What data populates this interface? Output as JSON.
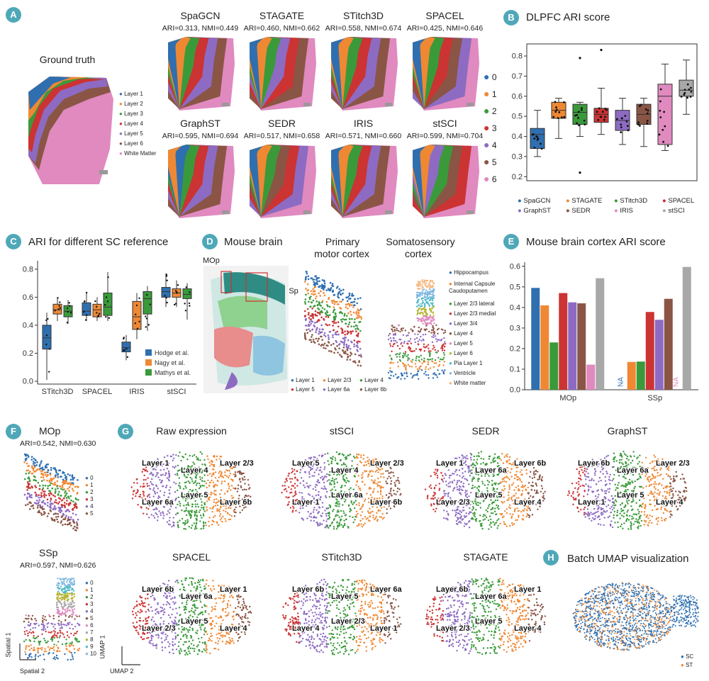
{
  "colors": {
    "teal": "#4fa8b8",
    "spagcn": "#2f6fb0",
    "stagate": "#ef8833",
    "stitch3d": "#3a9a3a",
    "spacel": "#cc3333",
    "graphst": "#8d6bc2",
    "sedr": "#8a5545",
    "iris": "#e08ac0",
    "stsci": "#a8a8a8",
    "hodge": "#2f6fb0",
    "nagy": "#ef8833",
    "mathys": "#3a9a3a"
  },
  "panels": {
    "A": {
      "letter": "A",
      "gt_title": "Ground truth",
      "gt_legend": [
        "Layer 1",
        "Layer 2",
        "Layer 3",
        "Layer 4",
        "Layer 5",
        "Layer 6",
        "White Matter"
      ],
      "methods": [
        {
          "name": "SpaGCN",
          "sub": "ARI=0.313, NMI=0.449"
        },
        {
          "name": "STAGATE",
          "sub": "ARI=0.460, NMI=0.662"
        },
        {
          "name": "STitch3D",
          "sub": "ARI=0.558, NMI=0.674"
        },
        {
          "name": "SPACEL",
          "sub": "ARI=0.425, NMI=0.646"
        },
        {
          "name": "GraphST",
          "sub": "ARI=0.595, NMI=0.694"
        },
        {
          "name": "SEDR",
          "sub": "ARI=0.517, NMI=0.658"
        },
        {
          "name": "IRIS",
          "sub": "ARI=0.571, NMI=0.660"
        },
        {
          "name": "stSCI",
          "sub": "ARI=0.599, NMI=0.704"
        }
      ],
      "cluster_legend": [
        "0",
        "1",
        "2",
        "3",
        "4",
        "5",
        "6"
      ]
    },
    "B": {
      "letter": "B",
      "title": "DLPFC ARI score"
    },
    "C": {
      "letter": "C",
      "title": "ARI for different SC reference"
    },
    "D": {
      "letter": "D",
      "t1": "Mouse brain",
      "t2a": "Primary",
      "t2b": "motor cortex",
      "t3a": "Somatosensory",
      "t3b": "cortex",
      "mop": "MOp",
      "ssp": "SSp",
      "layer_legend": [
        "Layer 1",
        "Layer 2/3",
        "Layer 4",
        "Layer 5",
        "Layer 6a",
        "Layer 6b"
      ],
      "region_legend": [
        "Hippocampus",
        "Internal Capsule Caudoputamen",
        "Layer 2/3 lateral",
        "Layer 2/3 medial",
        "Layer 3/4",
        "Layer 4",
        "Layer 5",
        "Layer 6",
        "Pia Layer 1",
        "Ventricle",
        "White matter"
      ]
    },
    "E": {
      "letter": "E",
      "title": "Mouse brain cortex ARI score",
      "na": "NA"
    },
    "F": {
      "letter": "F",
      "t1": "MOp",
      "s1": "ARI=0.542, NMI=0.630",
      "t2": "SSp",
      "s2": "ARI=0.597, NMI=0.626",
      "leg1": [
        "0",
        "1",
        "2",
        "3",
        "4",
        "5"
      ],
      "leg2": [
        "0",
        "1",
        "2",
        "3",
        "4",
        "5",
        "6",
        "7",
        "8",
        "9",
        "10"
      ],
      "ax_y": "Spatial 1",
      "ax_x": "Spatial 2"
    },
    "G": {
      "letter": "G",
      "umaps": [
        {
          "title": "Raw expression",
          "labels": [
            "Layer 1",
            "Layer 4",
            "Layer 2/3",
            "Layer 6a",
            "Layer 5",
            "Layer 6b"
          ]
        },
        {
          "title": "stSCI",
          "labels": [
            "Layer 5",
            "Layer 4",
            "Layer 2/3",
            "Layer 1",
            "Layer 6a",
            "Layer 6b"
          ]
        },
        {
          "title": "SEDR",
          "labels": [
            "Layer 1",
            "Layer 6a",
            "Layer 6b",
            "Layer 2/3",
            "Layer 5",
            "Layer 4"
          ]
        },
        {
          "title": "GraphST",
          "labels": [
            "Layer 6b",
            "Layer 6a",
            "Layer 2/3",
            "Layer 1",
            "Layer 5",
            "Layer 4"
          ]
        },
        {
          "title": "SPACEL",
          "labels": [
            "Layer 6b",
            "Layer 6a",
            "Layer 1",
            "Layer 2/3",
            "Layer 5",
            "Layer 4"
          ]
        },
        {
          "title": "STitch3D",
          "labels": [
            "Layer 6b",
            "Layer 5",
            "Layer 6a",
            "Layer 4",
            "Layer 2/3",
            "Layer 1"
          ]
        },
        {
          "title": "STAGATE",
          "labels": [
            "Layer 6b",
            "Layer 6a",
            "Layer 1",
            "Layer 2/3",
            "Layer 5",
            "Layer 4"
          ]
        }
      ],
      "ax_y": "UMAP 1",
      "ax_x": "UMAP 2"
    },
    "H": {
      "letter": "H",
      "title": "Batch UMAP visualization",
      "legend": [
        "SC",
        "ST"
      ]
    }
  },
  "chart_data": [
    {
      "id": "B",
      "type": "box",
      "title": "DLPFC ARI score",
      "ylim": [
        0.18,
        0.86
      ],
      "yticks": [
        0.2,
        0.3,
        0.4,
        0.5,
        0.6,
        0.7,
        0.8
      ],
      "series": [
        {
          "name": "SpaGCN",
          "median": 0.41,
          "q1": 0.34,
          "q3": 0.44,
          "lo": 0.3,
          "hi": 0.53,
          "outliers": []
        },
        {
          "name": "STAGATE",
          "median": 0.53,
          "q1": 0.49,
          "q3": 0.57,
          "lo": 0.39,
          "hi": 0.59,
          "outliers": []
        },
        {
          "name": "STitch3D",
          "median": 0.52,
          "q1": 0.46,
          "q3": 0.56,
          "lo": 0.4,
          "hi": 0.57,
          "outliers": [
            0.79,
            0.22
          ]
        },
        {
          "name": "SPACEL",
          "median": 0.51,
          "q1": 0.47,
          "q3": 0.54,
          "lo": 0.41,
          "hi": 0.64,
          "outliers": [
            0.83
          ]
        },
        {
          "name": "GraphST",
          "median": 0.48,
          "q1": 0.43,
          "q3": 0.53,
          "lo": 0.36,
          "hi": 0.59,
          "outliers": []
        },
        {
          "name": "SEDR",
          "median": 0.51,
          "q1": 0.46,
          "q3": 0.56,
          "lo": 0.35,
          "hi": 0.59,
          "outliers": []
        },
        {
          "name": "IRIS",
          "median": 0.6,
          "q1": 0.36,
          "q3": 0.66,
          "lo": 0.33,
          "hi": 0.76,
          "outliers": []
        },
        {
          "name": "stSCI",
          "median": 0.63,
          "q1": 0.6,
          "q3": 0.68,
          "lo": 0.51,
          "hi": 0.78,
          "outliers": []
        }
      ]
    },
    {
      "id": "C",
      "type": "box",
      "title": "ARI for different SC reference",
      "categories": [
        "STitch3D",
        "SPACEL",
        "IRIS",
        "stSCI"
      ],
      "legend": [
        "Hodge et al.",
        "Nagy et al.",
        "Mathys et al."
      ],
      "ylim": [
        -0.02,
        0.86
      ],
      "yticks": [
        0.0,
        0.2,
        0.4,
        0.6,
        0.8
      ],
      "series": [
        {
          "name": "Hodge et al.",
          "boxes": [
            {
              "median": 0.31,
              "q1": 0.23,
              "q3": 0.4,
              "lo": 0.01,
              "hi": 0.49
            },
            {
              "median": 0.5,
              "q1": 0.47,
              "q3": 0.56,
              "lo": 0.43,
              "hi": 0.64
            },
            {
              "median": 0.24,
              "q1": 0.21,
              "q3": 0.28,
              "lo": 0.15,
              "hi": 0.33
            },
            {
              "median": 0.64,
              "q1": 0.6,
              "q3": 0.67,
              "lo": 0.53,
              "hi": 0.77
            }
          ]
        },
        {
          "name": "Nagy et al.",
          "boxes": [
            {
              "median": 0.51,
              "q1": 0.48,
              "q3": 0.55,
              "lo": 0.43,
              "hi": 0.6
            },
            {
              "median": 0.51,
              "q1": 0.46,
              "q3": 0.55,
              "lo": 0.43,
              "hi": 0.6
            },
            {
              "median": 0.46,
              "q1": 0.37,
              "q3": 0.57,
              "lo": 0.3,
              "hi": 0.63
            },
            {
              "median": 0.63,
              "q1": 0.6,
              "q3": 0.66,
              "lo": 0.53,
              "hi": 0.72
            }
          ]
        },
        {
          "name": "Mathys et al.",
          "boxes": [
            {
              "median": 0.5,
              "q1": 0.46,
              "q3": 0.54,
              "lo": 0.41,
              "hi": 0.58
            },
            {
              "median": 0.53,
              "q1": 0.47,
              "q3": 0.63,
              "lo": 0.43,
              "hi": 0.78
            },
            {
              "median": 0.59,
              "q1": 0.48,
              "q3": 0.64,
              "lo": 0.36,
              "hi": 0.68
            },
            {
              "median": 0.62,
              "q1": 0.59,
              "q3": 0.66,
              "lo": 0.44,
              "hi": 0.7
            }
          ]
        }
      ]
    },
    {
      "id": "E",
      "type": "bar",
      "title": "Mouse brain cortex ARI score",
      "categories": [
        "MOp",
        "SSp"
      ],
      "ylim": [
        0,
        0.62
      ],
      "yticks": [
        0.0,
        0.1,
        0.2,
        0.3,
        0.4,
        0.5,
        0.6
      ],
      "series": [
        {
          "name": "SpaGCN",
          "values": [
            0.495,
            null
          ]
        },
        {
          "name": "STAGATE",
          "values": [
            0.41,
            0.135
          ]
        },
        {
          "name": "STitch3D",
          "values": [
            0.23,
            0.137
          ]
        },
        {
          "name": "SPACEL",
          "values": [
            0.47,
            0.378
          ]
        },
        {
          "name": "GraphST",
          "values": [
            0.425,
            0.34
          ]
        },
        {
          "name": "SEDR",
          "values": [
            0.42,
            0.442
          ]
        },
        {
          "name": "IRIS",
          "values": [
            0.122,
            null
          ]
        },
        {
          "name": "stSCI",
          "values": [
            0.542,
            0.597
          ]
        }
      ]
    }
  ]
}
